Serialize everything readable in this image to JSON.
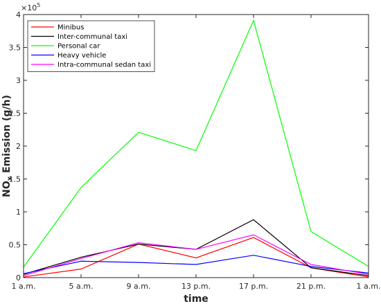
{
  "chart_data": {
    "type": "line",
    "xlabel": "time",
    "ylabel": "NOx Emission (g/h)",
    "ylabel_parts": {
      "base": "NO",
      "sub": "x",
      "rest": " Emission (g/h)"
    },
    "y_exponent": {
      "base": "×10",
      "power": "5"
    },
    "categories": [
      "1 a.m.",
      "5 a.m.",
      "9 a.m.",
      "13 p.m.",
      "17 p.m.",
      "21 p.m.",
      "1 a.m."
    ],
    "ylim": [
      0,
      400000
    ],
    "ytick_values": [
      0,
      50000,
      100000,
      150000,
      200000,
      250000,
      300000,
      350000,
      400000
    ],
    "ytick_labels": [
      "0",
      "0.5",
      "1",
      "1.5",
      "2",
      "2.5",
      "3",
      "3.5",
      "4"
    ],
    "grid": false,
    "legend_position": "top-left",
    "series": [
      {
        "name": "Minibus",
        "color": "#ff0000",
        "values": [
          1000,
          13000,
          51000,
          30000,
          61000,
          15000,
          1000
        ]
      },
      {
        "name": "Inter-communal taxi",
        "color": "#000000",
        "values": [
          5000,
          31000,
          51000,
          43000,
          88000,
          15000,
          3000
        ]
      },
      {
        "name": "Personal car",
        "color": "#00ff00",
        "values": [
          16000,
          137000,
          221000,
          193000,
          391000,
          70000,
          17000
        ]
      },
      {
        "name": "Heavy vehicle",
        "color": "#0000ff",
        "values": [
          6000,
          25000,
          23000,
          20000,
          34000,
          17000,
          7000
        ]
      },
      {
        "name": "Intra-communal sedan taxi",
        "color": "#ff00ff",
        "values": [
          3000,
          29000,
          53000,
          43000,
          65000,
          20000,
          5000
        ]
      }
    ]
  }
}
